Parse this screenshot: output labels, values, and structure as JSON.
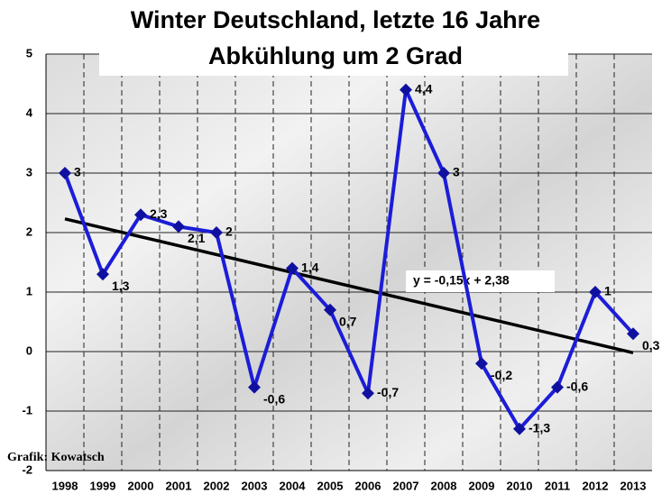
{
  "chart_data": {
    "type": "line",
    "title": "Winter Deutschland, letzte 16 Jahre",
    "subtitle": "Abkühlung um 2 Grad",
    "categories": [
      "1998",
      "1999",
      "2000",
      "2001",
      "2002",
      "2003",
      "2004",
      "2005",
      "2006",
      "2007",
      "2008",
      "2009",
      "2010",
      "2011",
      "2012",
      "2013"
    ],
    "series": [
      {
        "color": "#1c1cd8",
        "values": [
          3,
          1.3,
          2.3,
          2.1,
          2,
          -0.6,
          1.4,
          0.7,
          -0.7,
          4.4,
          3,
          -0.2,
          -1.3,
          -0.6,
          1,
          0.3
        ],
        "value_labels": [
          "3",
          "1,3",
          "2,3",
          "2,1",
          "2",
          "-0,6",
          "1,4",
          "0,7",
          "-0,7",
          "4,4",
          "3",
          "-0,2",
          "-1,3",
          "-0,6",
          "1",
          "0,3"
        ]
      }
    ],
    "trendline": {
      "slope": -0.15,
      "intercept": 2.38,
      "label": "y = -0,15x + 2,38",
      "color": "#000000"
    },
    "ylim": [
      -2,
      5
    ],
    "yticks": [
      -2,
      -1,
      0,
      1,
      2,
      3,
      4,
      5
    ],
    "grid": true,
    "source": "Grafik: Kowatsch"
  }
}
